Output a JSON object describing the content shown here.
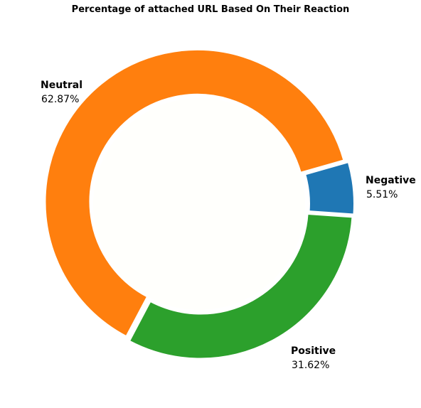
{
  "chart_data": {
    "type": "pie",
    "variant": "donut",
    "title": "Percentage of attached URL  Based On Their Reaction",
    "categories": [
      "Negative",
      "Neutral",
      "Positive"
    ],
    "values": [
      5.51,
      62.87,
      31.62
    ],
    "value_labels": [
      "5.51%",
      "62.87%",
      "31.62%"
    ],
    "colors": [
      "#1f77b4",
      "#ff7f0e",
      "#2ca02c"
    ],
    "center_color": "#fffffc",
    "slices_exploded": true,
    "legend": "none"
  }
}
